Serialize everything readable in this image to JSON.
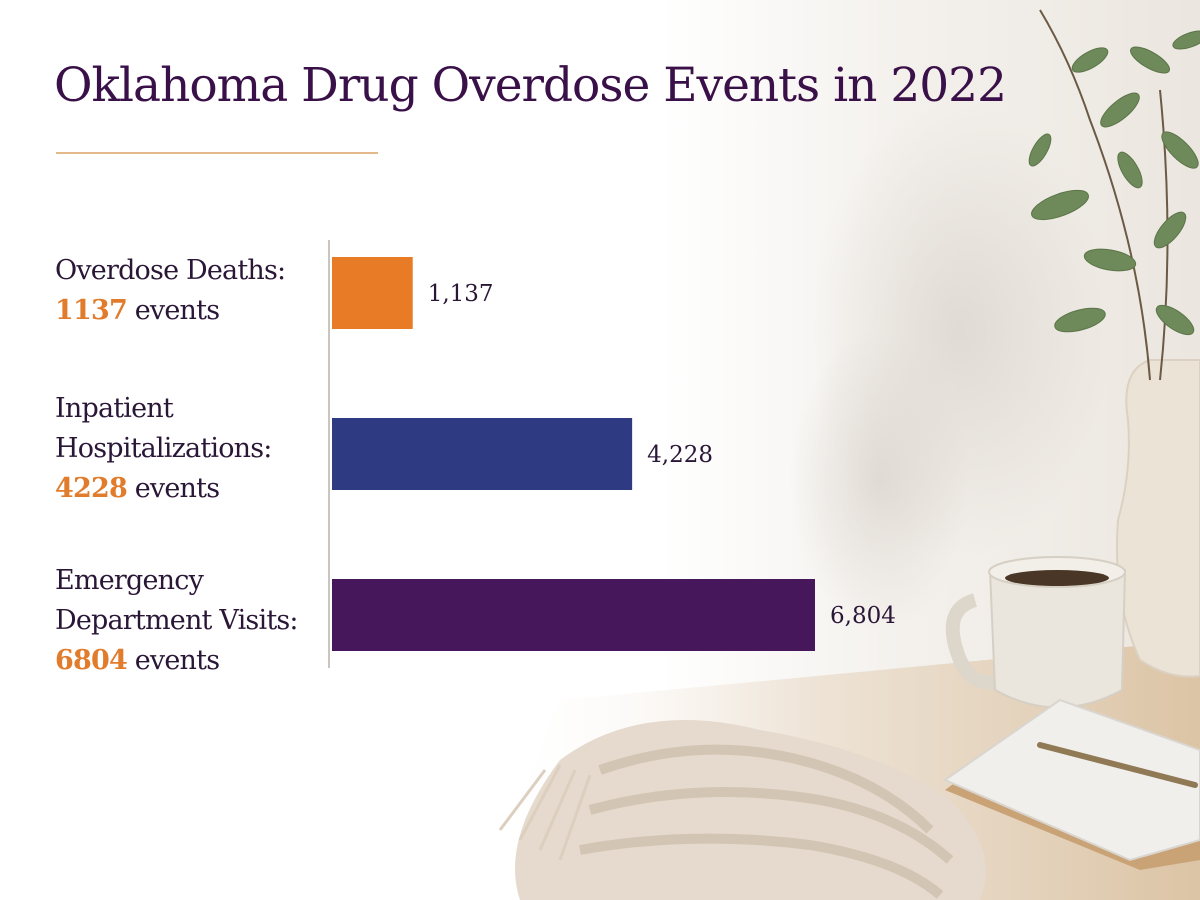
{
  "chart_data": {
    "type": "bar",
    "orientation": "horizontal",
    "title": "Oklahoma Drug Overdose Events in 2022",
    "categories": [
      "Overdose Deaths",
      "Inpatient Hospitalizations",
      "Emergency Department Visits"
    ],
    "values": [
      1137,
      4228,
      6804
    ],
    "value_labels": [
      "1,137",
      "4,228",
      "6,804"
    ],
    "colors": [
      "#e87b25",
      "#2e3a82",
      "#46175a"
    ],
    "xlim": [
      0,
      6804
    ],
    "grid": false,
    "legend": "none"
  },
  "labels": [
    {
      "name_lines": [
        "Overdose Deaths:"
      ],
      "count": "1137",
      "unit": "events"
    },
    {
      "name_lines": [
        "Inpatient",
        "Hospitalizations:"
      ],
      "count": "4228",
      "unit": "events"
    },
    {
      "name_lines": [
        "Emergency",
        "Department Visits:"
      ],
      "count": "6804",
      "unit": "events"
    }
  ],
  "colors": {
    "title": "#3a1048",
    "accent": "#e07c2b",
    "rule": "#e3b98a"
  }
}
